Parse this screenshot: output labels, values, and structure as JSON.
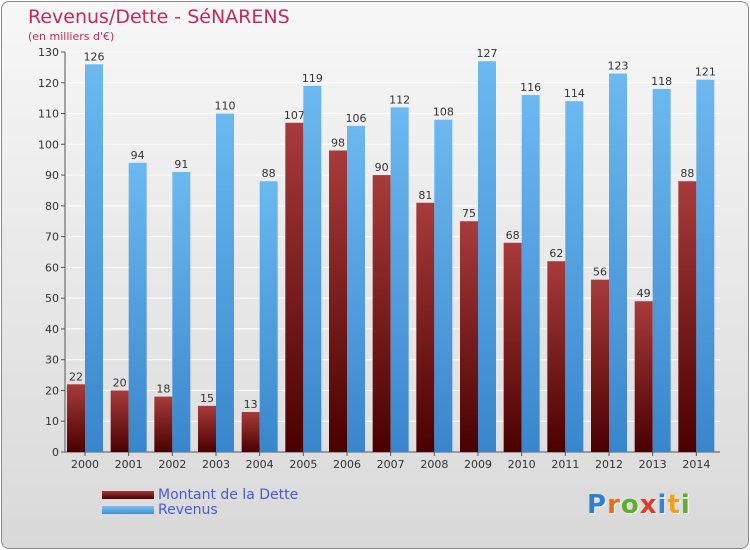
{
  "header": {
    "title": "Revenus/Dette - SéNARENS",
    "subtitle": "(en milliers d'€)"
  },
  "legend": {
    "dette_label": "Montant de la Dette",
    "revenus_label": "Revenus"
  },
  "logo": {
    "text": "Proxiti",
    "letters": [
      "P",
      "r",
      "o",
      "x",
      "i",
      "t",
      "i"
    ],
    "colors": [
      "#2f7fd0",
      "#e86d1a",
      "#5cae2e",
      "#e23a2a",
      "#3a7fd0",
      "#f0a020",
      "#5cae2e"
    ]
  },
  "colors": {
    "dette_top": "#a83b3b",
    "dette_bottom": "#4a0000",
    "revenus_top": "#6cb8f0",
    "revenus_bottom": "#3a86cc",
    "text": "#333333"
  },
  "chart_data": {
    "type": "bar",
    "categories": [
      "2000",
      "2001",
      "2002",
      "2003",
      "2004",
      "2005",
      "2006",
      "2007",
      "2008",
      "2009",
      "2010",
      "2011",
      "2012",
      "2013",
      "2014"
    ],
    "series": [
      {
        "name": "Montant de la Dette",
        "values": [
          22,
          20,
          18,
          15,
          13,
          107,
          98,
          90,
          81,
          75,
          68,
          62,
          56,
          49,
          88
        ]
      },
      {
        "name": "Revenus",
        "values": [
          126,
          94,
          91,
          110,
          88,
          119,
          106,
          112,
          108,
          127,
          116,
          114,
          123,
          118,
          121
        ]
      }
    ],
    "title": "Revenus/Dette - SéNARENS",
    "subtitle": "(en milliers d'€)",
    "ylim": [
      0,
      130
    ],
    "yticks": [
      0,
      10,
      20,
      30,
      40,
      50,
      60,
      70,
      80,
      90,
      100,
      110,
      120,
      130
    ],
    "grid": true,
    "legend_position": "bottom-left",
    "data_labels": true
  }
}
